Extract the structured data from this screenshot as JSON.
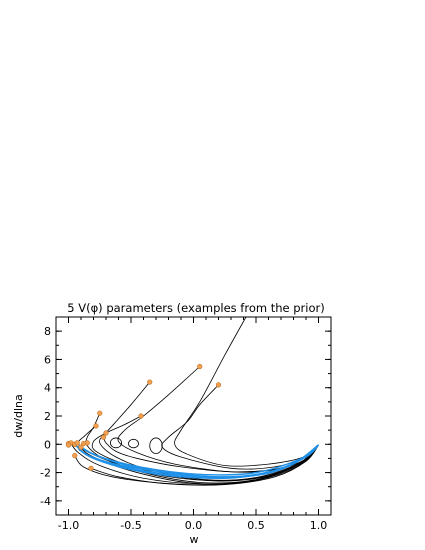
{
  "chart_data": {
    "type": "line",
    "title": "5 V(φ) parameters (examples from the prior)",
    "xlabel": "w",
    "ylabel": "dw/dlna",
    "xlim": [
      -1.1,
      1.1
    ],
    "ylim": [
      -5,
      9
    ],
    "xticks": [
      -1.0,
      -0.5,
      0.0,
      0.5,
      1.0
    ],
    "xtick_labels": [
      "-1.0",
      "-0.5",
      "0.0",
      "0.5",
      "1.0"
    ],
    "yticks": [
      -4,
      -2,
      0,
      2,
      4,
      6,
      8
    ],
    "ytick_labels": [
      "-4",
      "-2",
      "0",
      "2",
      "4",
      "6",
      "8"
    ],
    "grid": false,
    "colors": {
      "black_curves": "#000000",
      "blue_curves": "#1e90e8",
      "markers": "#f0a050"
    },
    "series": [
      {
        "color": "black",
        "points": [
          [
            0.42,
            9.0
          ],
          [
            0.25,
            6.3
          ],
          [
            0.05,
            3.0
          ],
          [
            -0.1,
            1.0
          ],
          [
            -0.15,
            0.0
          ],
          [
            -0.05,
            -0.7
          ],
          [
            0.25,
            -1.5
          ],
          [
            0.6,
            -1.4
          ],
          [
            0.88,
            -0.9
          ],
          [
            1.0,
            -0.05
          ]
        ]
      },
      {
        "color": "black",
        "points": [
          [
            0.2,
            4.2
          ],
          [
            0.05,
            2.8
          ],
          [
            -0.05,
            1.6
          ],
          [
            -0.2,
            0.5
          ],
          [
            -0.25,
            -0.2
          ],
          [
            -0.1,
            -0.9
          ],
          [
            0.3,
            -1.7
          ],
          [
            0.65,
            -1.6
          ],
          [
            0.9,
            -0.9
          ],
          [
            1.0,
            -0.05
          ]
        ]
      },
      {
        "color": "black",
        "points": [
          [
            0.05,
            5.5
          ],
          [
            -0.2,
            3.5
          ],
          [
            -0.4,
            2.0
          ],
          [
            -0.55,
            1.0
          ],
          [
            -0.6,
            0.2
          ],
          [
            -0.45,
            -0.6
          ],
          [
            -0.15,
            -1.4
          ],
          [
            0.3,
            -1.95
          ],
          [
            0.65,
            -1.8
          ],
          [
            0.9,
            -1.05
          ],
          [
            1.0,
            -0.05
          ]
        ]
      },
      {
        "color": "black",
        "points": [
          [
            -0.35,
            4.4
          ],
          [
            -0.5,
            2.8
          ],
          [
            -0.63,
            1.5
          ],
          [
            -0.7,
            0.8
          ],
          [
            -0.75,
            0.1
          ],
          [
            -0.62,
            -0.9
          ],
          [
            -0.35,
            -1.8
          ],
          [
            0.1,
            -2.5
          ],
          [
            0.5,
            -2.35
          ],
          [
            0.85,
            -1.3
          ],
          [
            1.0,
            -0.05
          ]
        ]
      },
      {
        "color": "black",
        "points": [
          [
            -0.42,
            2.0
          ],
          [
            -0.55,
            1.4
          ],
          [
            -0.7,
            0.8
          ],
          [
            -0.8,
            0.2
          ],
          [
            -0.78,
            -0.5
          ],
          [
            -0.55,
            -1.4
          ],
          [
            -0.2,
            -2.2
          ],
          [
            0.2,
            -2.6
          ],
          [
            0.6,
            -2.25
          ],
          [
            0.9,
            -1.1
          ],
          [
            1.0,
            -0.05
          ]
        ]
      },
      {
        "color": "black",
        "points": [
          [
            -0.75,
            2.2
          ],
          [
            -0.8,
            1.2
          ],
          [
            -0.85,
            0.5
          ],
          [
            -0.85,
            -0.1
          ],
          [
            -0.72,
            -1.0
          ],
          [
            -0.4,
            -2.0
          ],
          [
            0.05,
            -2.7
          ],
          [
            0.5,
            -2.5
          ],
          [
            0.85,
            -1.4
          ],
          [
            1.0,
            -0.05
          ]
        ]
      },
      {
        "color": "black",
        "points": [
          [
            -0.78,
            1.3
          ],
          [
            -0.87,
            0.6
          ],
          [
            -0.92,
            0.0
          ],
          [
            -0.8,
            -0.9
          ],
          [
            -0.45,
            -2.0
          ],
          [
            0.0,
            -2.75
          ],
          [
            0.45,
            -2.6
          ],
          [
            0.82,
            -1.5
          ],
          [
            1.0,
            -0.05
          ]
        ]
      },
      {
        "color": "black",
        "points": [
          [
            -0.95,
            -0.8
          ],
          [
            -0.88,
            -1.6
          ],
          [
            -0.65,
            -2.3
          ],
          [
            -0.25,
            -2.75
          ],
          [
            0.2,
            -2.85
          ],
          [
            0.6,
            -2.35
          ],
          [
            0.88,
            -1.3
          ],
          [
            1.0,
            -0.05
          ]
        ]
      },
      {
        "color": "black",
        "points": [
          [
            -0.82,
            -1.7
          ],
          [
            -0.6,
            -2.3
          ],
          [
            -0.2,
            -2.8
          ],
          [
            0.25,
            -2.85
          ],
          [
            0.65,
            -2.3
          ],
          [
            0.9,
            -1.2
          ],
          [
            1.0,
            -0.05
          ]
        ]
      },
      {
        "color": "black",
        "points": [
          [
            -0.98,
            0.05
          ],
          [
            -0.92,
            -0.6
          ],
          [
            -0.75,
            -1.5
          ],
          [
            -0.4,
            -2.4
          ],
          [
            0.05,
            -2.8
          ],
          [
            0.5,
            -2.55
          ],
          [
            0.86,
            -1.35
          ],
          [
            1.0,
            -0.05
          ]
        ]
      },
      {
        "color": "black",
        "points": [
          [
            -0.97,
            0.1
          ],
          [
            -0.9,
            -0.3
          ],
          [
            -0.7,
            -1.1
          ],
          [
            -0.35,
            -2.05
          ],
          [
            0.1,
            -2.55
          ],
          [
            0.55,
            -2.3
          ],
          [
            0.88,
            -1.2
          ],
          [
            1.0,
            -0.05
          ]
        ]
      },
      {
        "color": "black",
        "points": [
          [
            -0.72,
            0.5
          ],
          [
            -0.7,
            0.1
          ],
          [
            -0.62,
            -0.5
          ],
          [
            -0.45,
            -1.0
          ],
          [
            -0.1,
            -1.6
          ],
          [
            0.35,
            -1.95
          ],
          [
            0.75,
            -1.55
          ],
          [
            1.0,
            -0.05
          ]
        ]
      },
      {
        "color": "blue",
        "points": [
          [
            -0.93,
            0.1
          ],
          [
            -0.86,
            -0.45
          ],
          [
            -0.65,
            -1.15
          ],
          [
            -0.3,
            -1.8
          ],
          [
            0.1,
            -2.15
          ],
          [
            0.5,
            -2.0
          ],
          [
            0.85,
            -1.05
          ],
          [
            1.0,
            -0.05
          ]
        ]
      },
      {
        "color": "blue",
        "points": [
          [
            -0.9,
            -0.2
          ],
          [
            -0.75,
            -0.9
          ],
          [
            -0.45,
            -1.65
          ],
          [
            -0.05,
            -2.2
          ],
          [
            0.4,
            -2.25
          ],
          [
            0.78,
            -1.45
          ],
          [
            1.0,
            -0.05
          ]
        ]
      },
      {
        "color": "blue",
        "points": [
          [
            -0.88,
            -0.6
          ],
          [
            -0.7,
            -1.3
          ],
          [
            -0.35,
            -1.95
          ],
          [
            0.05,
            -2.35
          ],
          [
            0.45,
            -2.25
          ],
          [
            0.8,
            -1.35
          ],
          [
            1.0,
            -0.05
          ]
        ]
      },
      {
        "color": "blue",
        "points": [
          [
            -0.95,
            0.0
          ],
          [
            -0.85,
            -0.75
          ],
          [
            -0.6,
            -1.45
          ],
          [
            -0.2,
            -2.0
          ],
          [
            0.2,
            -2.3
          ],
          [
            0.6,
            -2.05
          ],
          [
            0.9,
            -0.9
          ],
          [
            1.0,
            -0.05
          ]
        ]
      },
      {
        "color": "blue",
        "points": [
          [
            -0.92,
            -0.35
          ],
          [
            -0.8,
            -1.0
          ],
          [
            -0.5,
            -1.8
          ],
          [
            -0.1,
            -2.3
          ],
          [
            0.35,
            -2.35
          ],
          [
            0.75,
            -1.6
          ],
          [
            1.0,
            -0.05
          ]
        ]
      }
    ],
    "markers": [
      [
        0.2,
        4.2
      ],
      [
        0.05,
        5.5
      ],
      [
        -0.35,
        4.4
      ],
      [
        -0.42,
        2.0
      ],
      [
        -0.75,
        2.2
      ],
      [
        -0.78,
        1.3
      ],
      [
        -0.7,
        0.8
      ],
      [
        -0.72,
        0.5
      ],
      [
        -0.95,
        -0.8
      ],
      [
        -0.82,
        -1.7
      ],
      [
        -1.0,
        0.05
      ],
      [
        -0.98,
        0.1
      ],
      [
        -0.95,
        0.0
      ],
      [
        -0.93,
        0.1
      ],
      [
        -0.9,
        -0.2
      ],
      [
        -0.88,
        0.05
      ],
      [
        -0.85,
        0.1
      ],
      [
        -1.0,
        -0.05
      ]
    ],
    "loops": [
      {
        "cx": -0.62,
        "cy": 0.1,
        "rx": 0.045,
        "ry": 0.35
      },
      {
        "cx": -0.48,
        "cy": 0.05,
        "rx": 0.04,
        "ry": 0.3
      },
      {
        "cx": -0.3,
        "cy": -0.1,
        "rx": 0.05,
        "ry": 0.55
      }
    ]
  }
}
